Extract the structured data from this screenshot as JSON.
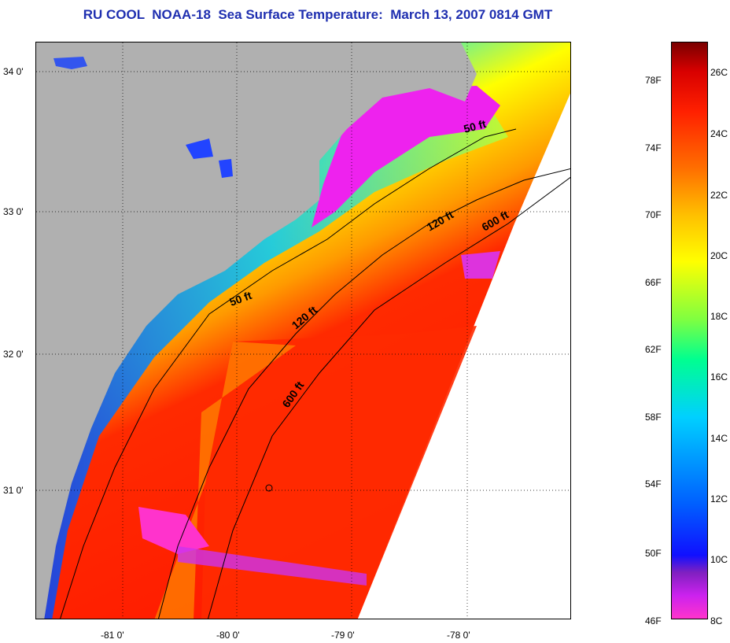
{
  "title": "RU COOL  NOAA-18  Sea Surface Temperature:  March 13, 2007 0814 GMT",
  "map": {
    "latitude_labels": [
      "34 0'",
      "33 0'",
      "32 0'",
      "31 0'"
    ],
    "longitude_labels": [
      "-81 0'",
      "-80 0'",
      "-79 0'",
      "-78 0'"
    ],
    "contour_labels": [
      "50 ft",
      "120 ft",
      "600 ft",
      "50 ft",
      "120 ft",
      "600 ft"
    ],
    "colors": {
      "land": "#b0b0b0",
      "no_data": "#ffffff"
    }
  },
  "colorbar": {
    "fahrenheit_labels": [
      "78F",
      "74F",
      "70F",
      "66F",
      "62F",
      "58F",
      "54F",
      "50F",
      "46F"
    ],
    "celsius_labels": [
      "26C",
      "24C",
      "22C",
      "20C",
      "18C",
      "16C",
      "14C",
      "12C",
      "10C",
      "8C"
    ]
  }
}
